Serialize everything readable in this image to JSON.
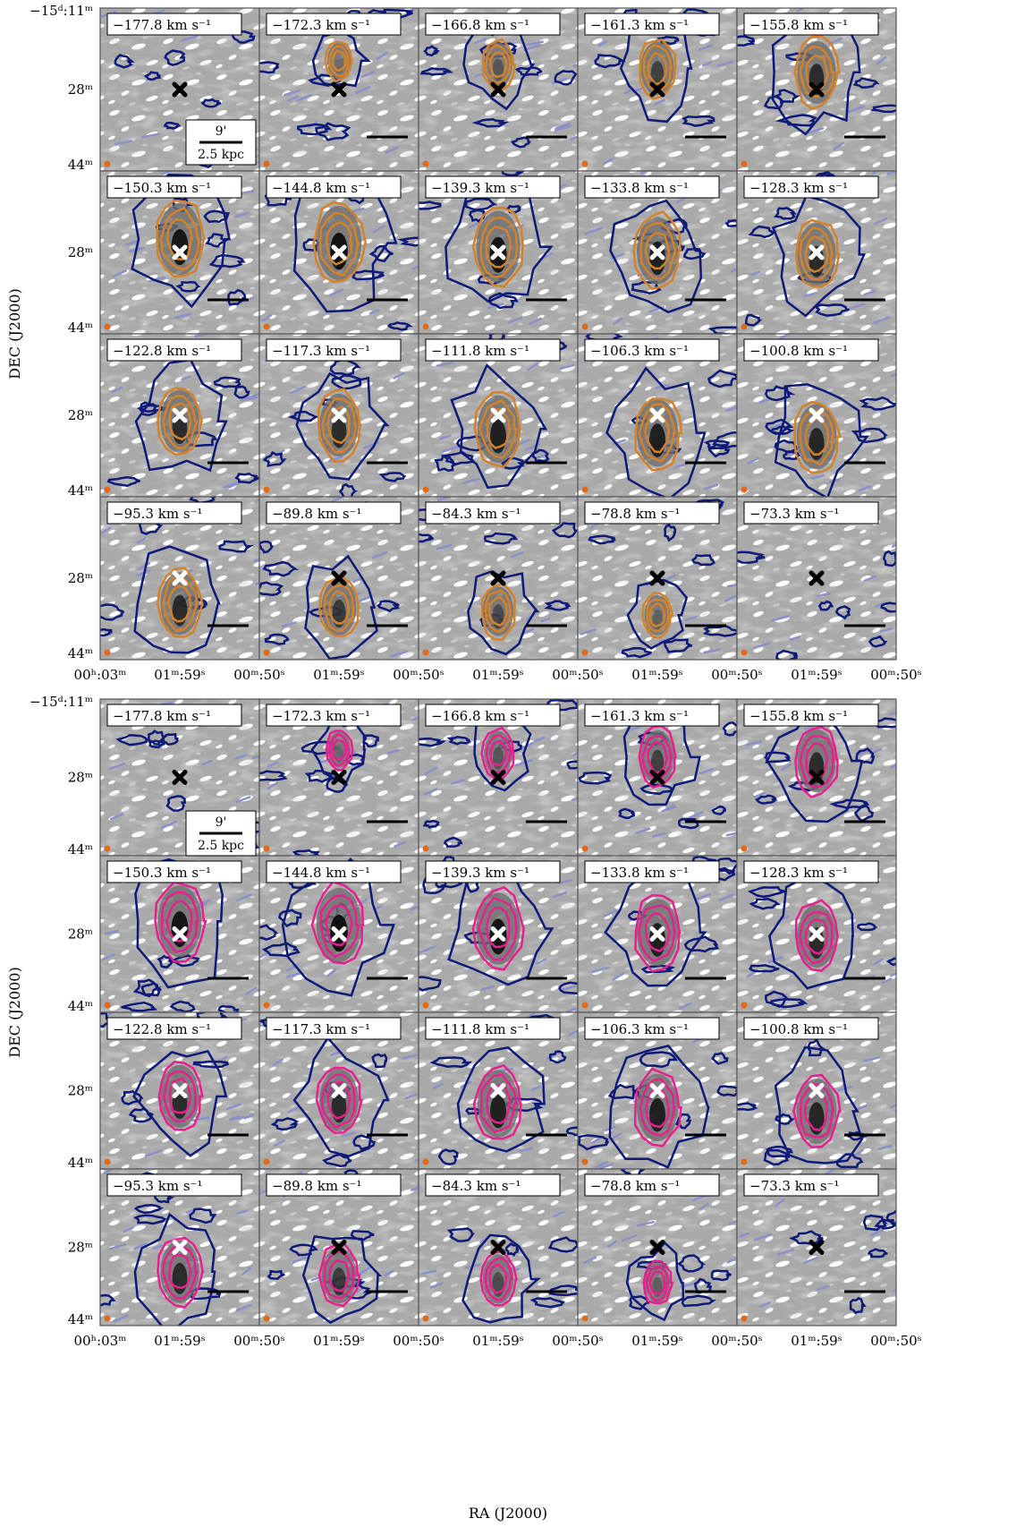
{
  "figure": {
    "velocity_labels": [
      [
        "−177.8 km s⁻¹",
        "−172.3 km s⁻¹",
        "−166.8 km s⁻¹",
        "−161.3 km s⁻¹",
        "−155.8 km s⁻¹"
      ],
      [
        "−150.3 km s⁻¹",
        "−144.8 km s⁻¹",
        "−139.3 km s⁻¹",
        "−133.8 km s⁻¹",
        "−128.3 km s⁻¹"
      ],
      [
        "−122.8 km s⁻¹",
        "−117.3 km s⁻¹",
        "−111.8 km s⁻¹",
        "−106.3 km s⁻¹",
        "−100.8 km s⁻¹"
      ],
      [
        "−95.3 km s⁻¹",
        "−89.8 km s⁻¹",
        "−84.3 km s⁻¹",
        "−78.8 km s⁻¹",
        "−73.3 km s⁻¹"
      ]
    ],
    "ytick_labels": [
      "−15ᵈ:11ᵐ",
      "28ᵐ",
      "44ᵐ"
    ],
    "xtick_labels": [
      "00ʰ:03ᵐ",
      "01ᵐ:59ˢ",
      "00ᵐ:50ˢ"
    ],
    "ylabel": "DEC (J2000)",
    "xlabel": "RA (J2000)",
    "scalebar": {
      "angle": "9'",
      "distance": "2.5 kpc"
    },
    "colors": {
      "background_gray": "#a9a9a9",
      "light_patch": "#ffffff",
      "blue_contour": "#0d1a78",
      "faint_dashed_contour": "#8b90c8",
      "orange_contour": "#d4822a",
      "magenta_contour": "#e8208f",
      "beam": "#e06a1a",
      "frame": "#555555"
    },
    "panel_sets": [
      {
        "name": "top-panels",
        "emission_color": "orange_contour"
      },
      {
        "name": "bottom-panels",
        "emission_color": "magenta_contour"
      }
    ],
    "emission_intensity": [
      [
        0.05,
        0.15,
        0.35,
        0.55,
        0.75
      ],
      [
        0.95,
        1.0,
        0.95,
        0.85,
        0.75
      ],
      [
        0.75,
        0.75,
        0.85,
        0.85,
        0.8
      ],
      [
        0.75,
        0.6,
        0.45,
        0.25,
        0.05
      ]
    ]
  }
}
